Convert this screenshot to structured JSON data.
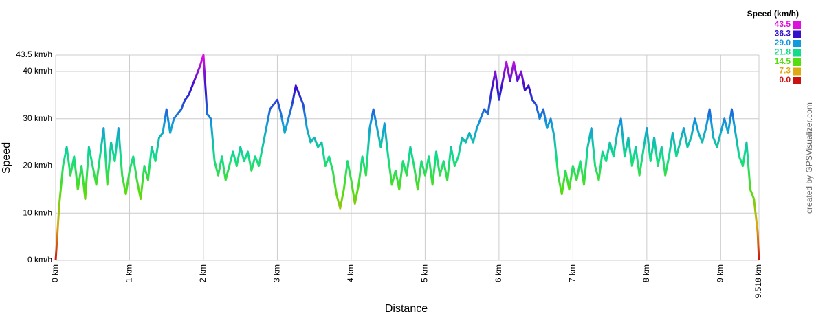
{
  "chart_data": {
    "type": "line",
    "xlabel": "Distance",
    "ylabel": "Speed",
    "credit": "created by GPSVisualizer.com",
    "xlim": [
      0,
      9.518
    ],
    "xticks": [
      {
        "value": 0,
        "label": "0 km"
      },
      {
        "value": 1,
        "label": "1 km"
      },
      {
        "value": 2,
        "label": "2 km"
      },
      {
        "value": 3,
        "label": "3 km"
      },
      {
        "value": 4,
        "label": "4 km"
      },
      {
        "value": 5,
        "label": "5 km"
      },
      {
        "value": 6,
        "label": "6 km"
      },
      {
        "value": 7,
        "label": "7 km"
      },
      {
        "value": 8,
        "label": "8 km"
      },
      {
        "value": 9,
        "label": "9 km"
      },
      {
        "value": 9.518,
        "label": "9.518 km"
      }
    ],
    "ylim": [
      0,
      43.5
    ],
    "yticks": [
      {
        "value": 0,
        "label": "0 km/h"
      },
      {
        "value": 10,
        "label": "10 km/h"
      },
      {
        "value": 20,
        "label": "20 km/h"
      },
      {
        "value": 30,
        "label": "30 km/h"
      },
      {
        "value": 40,
        "label": "40 km/h"
      },
      {
        "value": 43.5,
        "label": "43.5 km/h"
      }
    ],
    "grid": true,
    "legend": {
      "title": "Speed (km/h)",
      "values": [
        43.5,
        36.3,
        29.0,
        21.8,
        14.5,
        7.3,
        0.0
      ],
      "value_labels": [
        "43.5",
        "36.3",
        "29.0",
        "21.8",
        "14.5",
        "7.3",
        "0.0"
      ],
      "colors": [
        "#dd11dd",
        "#3311cc",
        "#1199dd",
        "#11dd88",
        "#55dd11",
        "#ddaa11",
        "#cc1111"
      ]
    },
    "x": [
      0,
      0.05,
      0.1,
      0.15,
      0.2,
      0.25,
      0.3,
      0.35,
      0.4,
      0.45,
      0.5,
      0.55,
      0.6,
      0.65,
      0.7,
      0.75,
      0.8,
      0.85,
      0.9,
      0.95,
      1,
      1.05,
      1.1,
      1.15,
      1.2,
      1.25,
      1.3,
      1.35,
      1.4,
      1.45,
      1.5,
      1.55,
      1.6,
      1.65,
      1.7,
      1.75,
      1.8,
      1.85,
      1.9,
      1.95,
      2,
      2.05,
      2.1,
      2.15,
      2.2,
      2.25,
      2.3,
      2.35,
      2.4,
      2.45,
      2.5,
      2.55,
      2.6,
      2.65,
      2.7,
      2.75,
      2.8,
      2.85,
      2.9,
      2.95,
      3,
      3.05,
      3.1,
      3.15,
      3.2,
      3.25,
      3.3,
      3.35,
      3.4,
      3.45,
      3.5,
      3.55,
      3.6,
      3.65,
      3.7,
      3.75,
      3.8,
      3.85,
      3.9,
      3.95,
      4,
      4.05,
      4.1,
      4.15,
      4.2,
      4.25,
      4.3,
      4.35,
      4.4,
      4.45,
      4.5,
      4.55,
      4.6,
      4.65,
      4.7,
      4.75,
      4.8,
      4.85,
      4.9,
      4.95,
      5,
      5.05,
      5.1,
      5.15,
      5.2,
      5.25,
      5.3,
      5.35,
      5.4,
      5.45,
      5.5,
      5.55,
      5.6,
      5.65,
      5.7,
      5.75,
      5.8,
      5.85,
      5.9,
      5.95,
      6,
      6.05,
      6.1,
      6.15,
      6.2,
      6.25,
      6.3,
      6.35,
      6.4,
      6.45,
      6.5,
      6.55,
      6.6,
      6.65,
      6.7,
      6.75,
      6.8,
      6.85,
      6.9,
      6.95,
      7,
      7.05,
      7.1,
      7.15,
      7.2,
      7.25,
      7.3,
      7.35,
      7.4,
      7.45,
      7.5,
      7.55,
      7.6,
      7.65,
      7.7,
      7.75,
      7.8,
      7.85,
      7.9,
      7.95,
      8,
      8.05,
      8.1,
      8.15,
      8.2,
      8.25,
      8.3,
      8.35,
      8.4,
      8.45,
      8.5,
      8.55,
      8.6,
      8.65,
      8.7,
      8.75,
      8.8,
      8.85,
      8.9,
      8.95,
      9,
      9.05,
      9.1,
      9.15,
      9.2,
      9.25,
      9.3,
      9.35,
      9.4,
      9.45,
      9.5,
      9.518
    ],
    "values": [
      0,
      12,
      20,
      24,
      18,
      22,
      15,
      20,
      13,
      24,
      20,
      16,
      22,
      28,
      16,
      25,
      21,
      28,
      18,
      14,
      19,
      22,
      17,
      13,
      20,
      17,
      24,
      21,
      26,
      27,
      32,
      27,
      30,
      31,
      32,
      34,
      35,
      37,
      39,
      41,
      43.5,
      31,
      30,
      21,
      18,
      22,
      17,
      20,
      23,
      20,
      24,
      21,
      23,
      19,
      22,
      20,
      24,
      28,
      32,
      33,
      34,
      31,
      27,
      30,
      33,
      37,
      35,
      33,
      28,
      25,
      26,
      24,
      25,
      20,
      22,
      19,
      14,
      11,
      15,
      21,
      17,
      12,
      16,
      22,
      18,
      28,
      32,
      28,
      24,
      29,
      22,
      16,
      19,
      15,
      21,
      18,
      24,
      20,
      15,
      21,
      18,
      22,
      16,
      23,
      18,
      21,
      17,
      24,
      20,
      22,
      26,
      25,
      27,
      25,
      28,
      30,
      32,
      31,
      36,
      40,
      34,
      38,
      42,
      38,
      42,
      38,
      40,
      36,
      37,
      34,
      33,
      30,
      32,
      28,
      30,
      26,
      18,
      14,
      19,
      15,
      20,
      17,
      21,
      16,
      24,
      28,
      20,
      17,
      23,
      21,
      25,
      22,
      27,
      30,
      22,
      26,
      20,
      24,
      18,
      23,
      28,
      21,
      26,
      20,
      24,
      18,
      22,
      27,
      22,
      25,
      28,
      24,
      26,
      30,
      27,
      25,
      28,
      32,
      26,
      24,
      27,
      30,
      27,
      32,
      27,
      22,
      20,
      25,
      15,
      13,
      6,
      0
    ]
  }
}
